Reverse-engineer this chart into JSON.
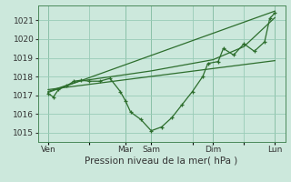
{
  "xlabel": "Pression niveau de la mer( hPa )",
  "background_color": "#cce8dc",
  "grid_color": "#99ccb8",
  "line_color": "#2d6e2d",
  "vline_color": "#4a8a5a",
  "ylim": [
    1014.5,
    1021.8
  ],
  "yticks": [
    1015,
    1016,
    1017,
    1018,
    1019,
    1020,
    1021
  ],
  "xlim": [
    0,
    24
  ],
  "xtick_positions": [
    1,
    5,
    8.5,
    11,
    15,
    17,
    20,
    23
  ],
  "xtick_labels": [
    "Ven",
    "",
    "Mar",
    "Sam",
    "",
    "Dim",
    "",
    "Lun"
  ],
  "vline_positions": [
    1,
    8.5,
    11,
    17,
    23
  ],
  "line1_x": [
    1.0,
    1.5,
    2.0,
    2.8,
    3.5,
    4.2,
    5.0,
    6.0,
    7.0,
    8.0,
    8.5,
    9.0,
    10.0,
    11.0,
    12.0,
    13.0,
    14.0,
    15.0,
    16.0,
    16.5,
    17.5,
    18.0,
    19.0,
    20.0,
    21.0,
    22.0,
    22.5,
    23.0
  ],
  "line1_y": [
    1017.1,
    1016.9,
    1017.3,
    1017.5,
    1017.75,
    1017.8,
    1017.75,
    1017.75,
    1017.9,
    1017.2,
    1016.7,
    1016.1,
    1015.7,
    1015.1,
    1015.3,
    1015.8,
    1016.5,
    1017.2,
    1018.0,
    1018.7,
    1018.8,
    1019.5,
    1019.15,
    1019.75,
    1019.35,
    1019.85,
    1021.1,
    1021.4
  ],
  "line2_x": [
    1.0,
    4.0,
    8.5,
    11.0,
    14.0,
    17.0,
    20.0,
    23.0
  ],
  "line2_y": [
    1017.2,
    1017.75,
    1018.1,
    1018.3,
    1018.6,
    1018.9,
    1019.6,
    1021.15
  ],
  "line3_x": [
    1.0,
    23.0
  ],
  "line3_y": [
    1017.15,
    1021.5
  ],
  "line4_x": [
    1.0,
    23.0
  ],
  "line4_y": [
    1017.3,
    1018.85
  ]
}
